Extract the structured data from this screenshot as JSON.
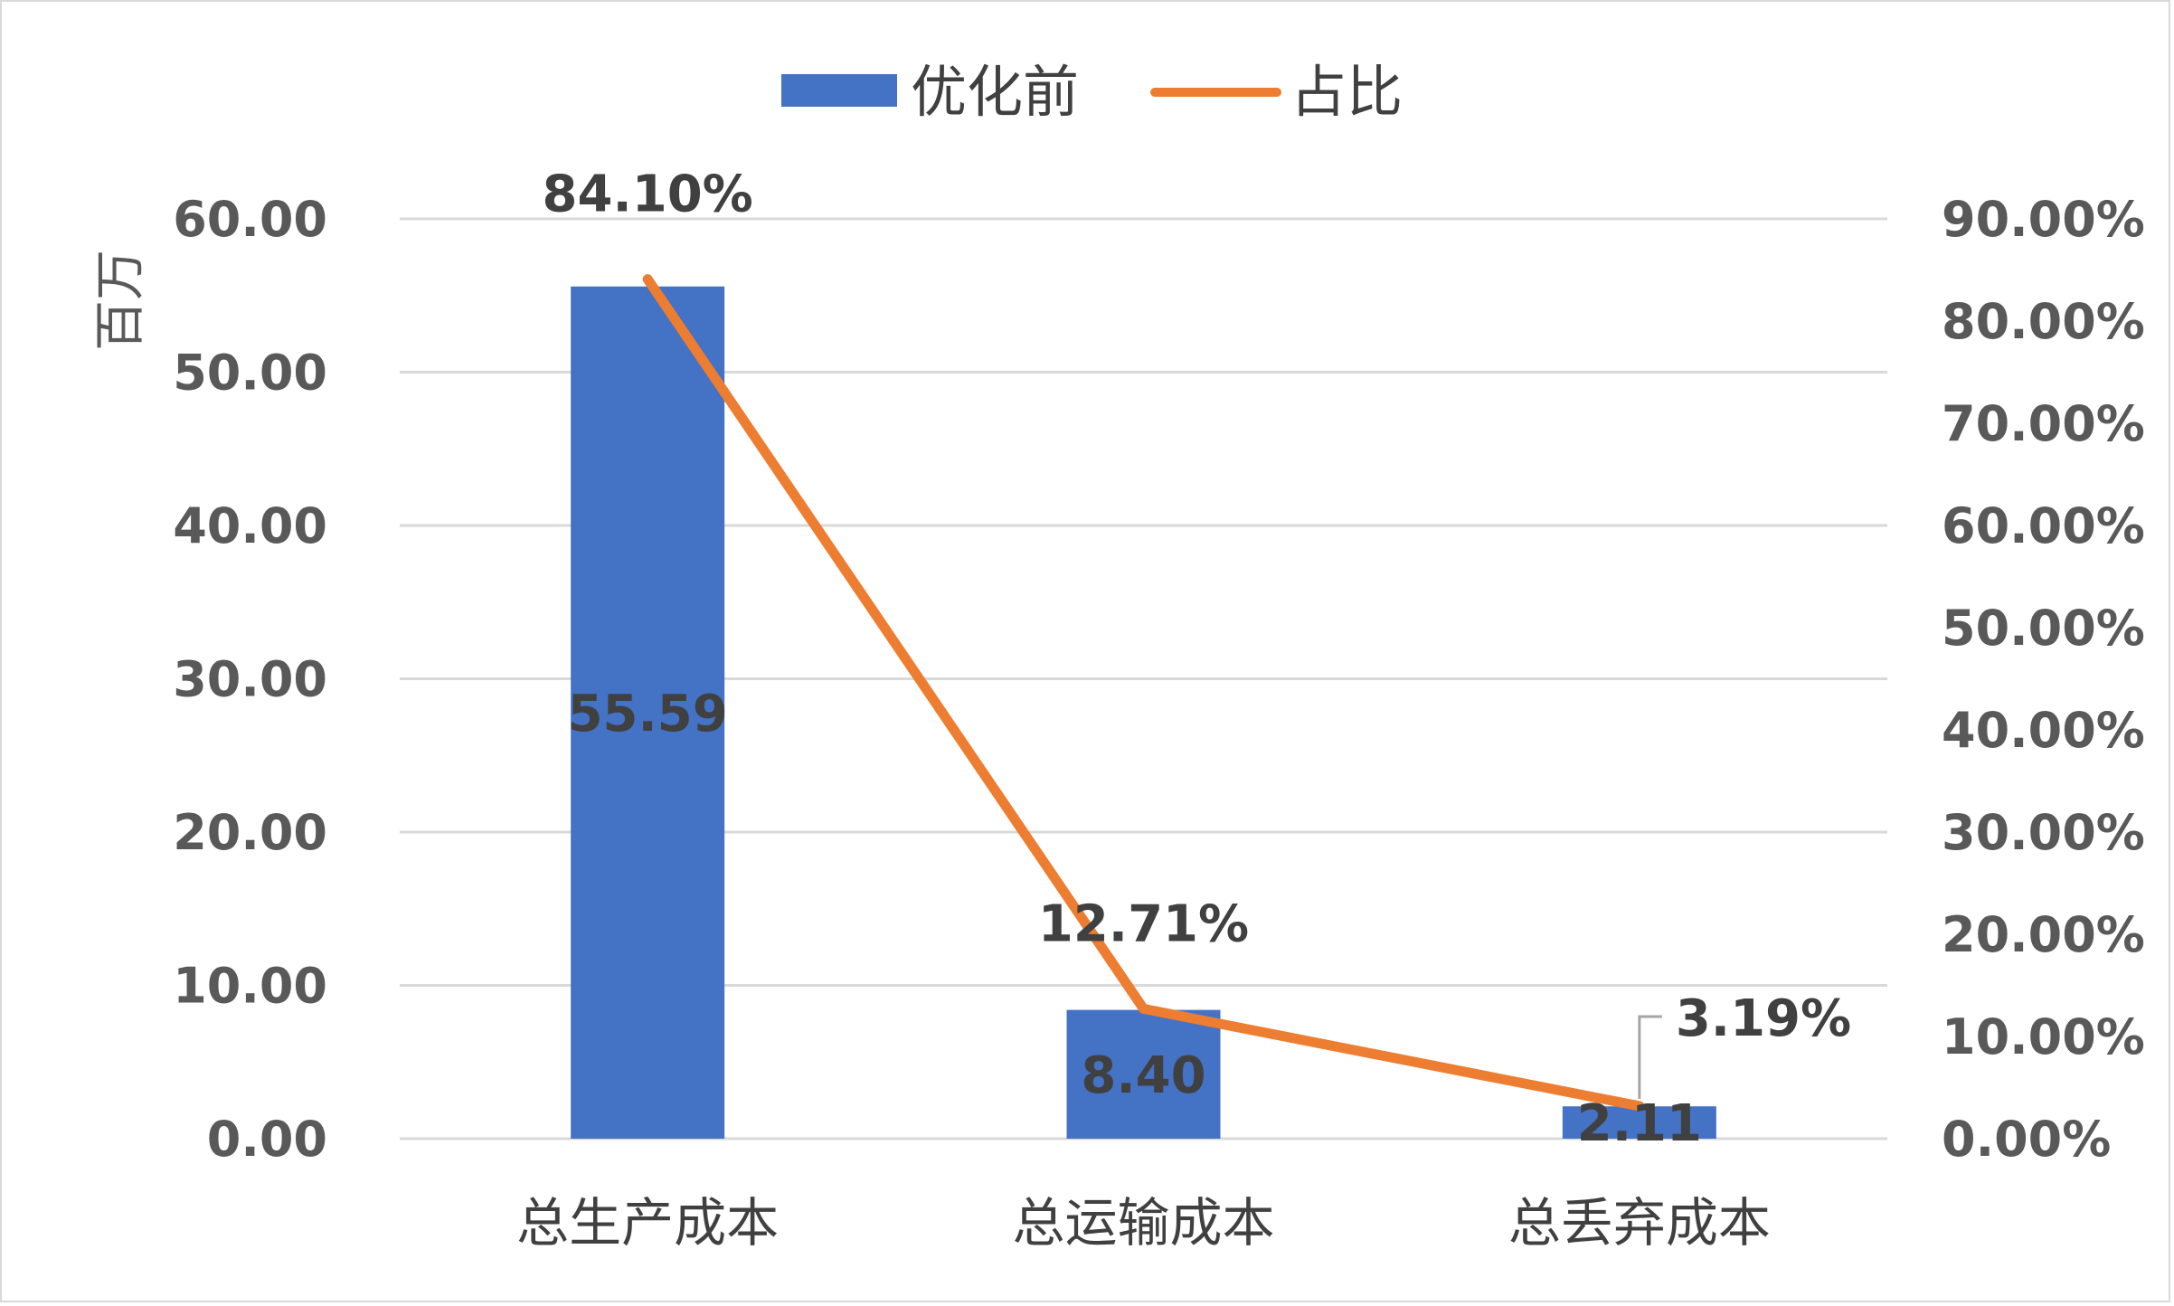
{
  "chart_data": {
    "type": "bar",
    "categories": [
      "总生产成本",
      "总运输成本",
      "总丢弃成本"
    ],
    "series": [
      {
        "name": "优化前",
        "type": "bar",
        "axis": "left",
        "values": [
          55.59,
          8.4,
          2.11
        ],
        "labels": [
          "55.59",
          "8.40",
          "2.11"
        ],
        "color": "#4472C4"
      },
      {
        "name": "占比",
        "type": "line",
        "axis": "right",
        "values": [
          84.1,
          12.71,
          3.19
        ],
        "labels": [
          "84.10%",
          "12.71%",
          "3.19%"
        ],
        "color": "#ED7D31"
      }
    ],
    "ylabel": "百万",
    "ylim": [
      0,
      60
    ],
    "y_ticks": [
      "0.00",
      "10.00",
      "20.00",
      "30.00",
      "40.00",
      "50.00",
      "60.00"
    ],
    "y2lim": [
      0,
      90
    ],
    "y2_ticks": [
      "0.00%",
      "10.00%",
      "20.00%",
      "30.00%",
      "40.00%",
      "50.00%",
      "60.00%",
      "70.00%",
      "80.00%",
      "90.00%"
    ],
    "grid": true,
    "gridline_color": "#d9d9d9",
    "legend_position": "top"
  }
}
